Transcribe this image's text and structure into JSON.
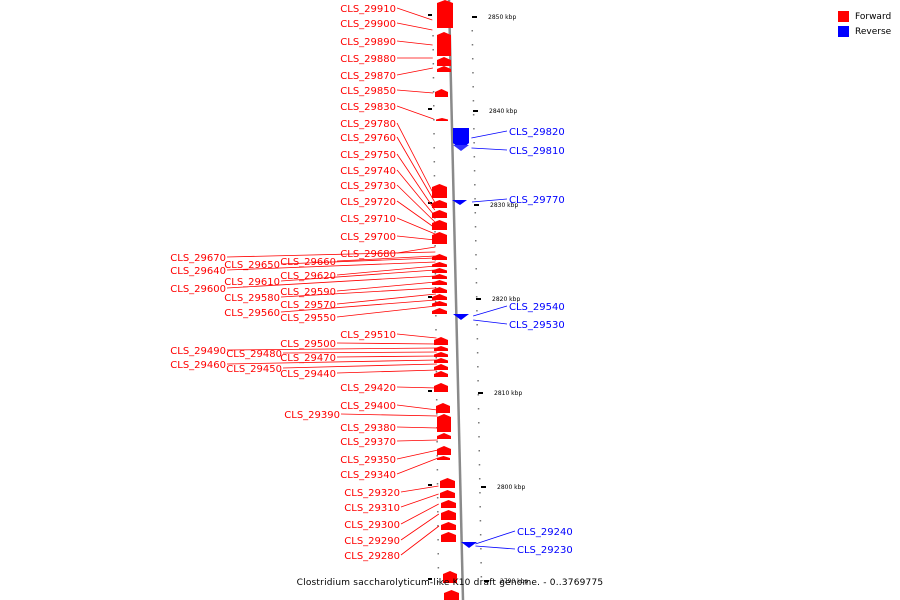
{
  "title": "Clostridium saccharolyticum-like K10 draft genome. - 0..3769775",
  "legend": [
    {
      "label": "Forward",
      "color": "#ff0000"
    },
    {
      "label": "Reverse",
      "color": "#0000ff"
    }
  ],
  "ticks": [
    "2850 kbp",
    "2840 kbp",
    "2830 kbp",
    "2820 kbp",
    "2810 kbp",
    "2800 kbp",
    "2790 kbp"
  ],
  "forward_genes": [
    "CLS_29910",
    "CLS_29900",
    "CLS_29890",
    "CLS_29880",
    "CLS_29870",
    "CLS_29850",
    "CLS_29830",
    "CLS_29780",
    "CLS_29760",
    "CLS_29750",
    "CLS_29740",
    "CLS_29730",
    "CLS_29720",
    "CLS_29710",
    "CLS_29700",
    "CLS_29680",
    "CLS_29670",
    "CLS_29660",
    "CLS_29650",
    "CLS_29640",
    "CLS_29620",
    "CLS_29610",
    "CLS_29600",
    "CLS_29590",
    "CLS_29580",
    "CLS_29570",
    "CLS_29560",
    "CLS_29550",
    "CLS_29510",
    "CLS_29500",
    "CLS_29490",
    "CLS_29480",
    "CLS_29470",
    "CLS_29460",
    "CLS_29450",
    "CLS_29440",
    "CLS_29420",
    "CLS_29400",
    "CLS_29390",
    "CLS_29380",
    "CLS_29370",
    "CLS_29350",
    "CLS_29340",
    "CLS_29320",
    "CLS_29310",
    "CLS_29300",
    "CLS_29290",
    "CLS_29280"
  ],
  "reverse_genes": [
    "CLS_29820",
    "CLS_29810",
    "CLS_29770",
    "CLS_29540",
    "CLS_29530",
    "CLS_29240",
    "CLS_29230"
  ]
}
